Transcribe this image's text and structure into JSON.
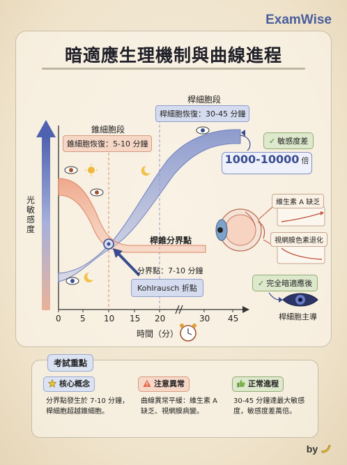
{
  "brand": "ExamWise",
  "title": "暗適應生理機制與曲線進程",
  "labels": {
    "rod_phase": "桿細胞段",
    "rod_recovery": "桿細胞恢復：30-45 分鐘",
    "cone_phase": "錐細胞段",
    "cone_recovery": "錐細胞恢復：5-10 分鐘",
    "sensitivity_diff": "敏感度差",
    "big_value": "1000-10000",
    "big_value_unit": "倍",
    "rod_cone_break": "桿錐分界點",
    "break_time": "分界點：7-10 分鐘",
    "kohlrausch": "Kohlrausch 折點",
    "vitamin_a": "維生素 A 缺乏",
    "retinitis": "視網膜色素退化",
    "full_adaptation": "完全暗適應後",
    "rod_dominant": "桿細胞主導",
    "y_axis_label": "光敏感度",
    "x_axis_label": "時間（分）"
  },
  "x_ticks": [
    "0",
    "5",
    "10",
    "15",
    "20",
    "30",
    "45"
  ],
  "exam": {
    "title": "考試重點",
    "cards": [
      {
        "label": "核心概念",
        "icon": "star-icon",
        "desc": "分界點發生於 7-10 分鐘，桿細胞超越錐細胞。"
      },
      {
        "label": "注意異常",
        "icon": "warning-icon",
        "desc": "曲線異常平緩：維生素 A 缺乏、視網膜病變。"
      },
      {
        "label": "正常進程",
        "icon": "thumbs-up-icon",
        "desc": "30-45 分鐘達最大敏感度，敏感度差萬倍。"
      }
    ]
  },
  "by": "by",
  "colors": {
    "rod": "#7f8fc8",
    "cone": "#e58a6a",
    "accent": "#4b5e9c"
  }
}
